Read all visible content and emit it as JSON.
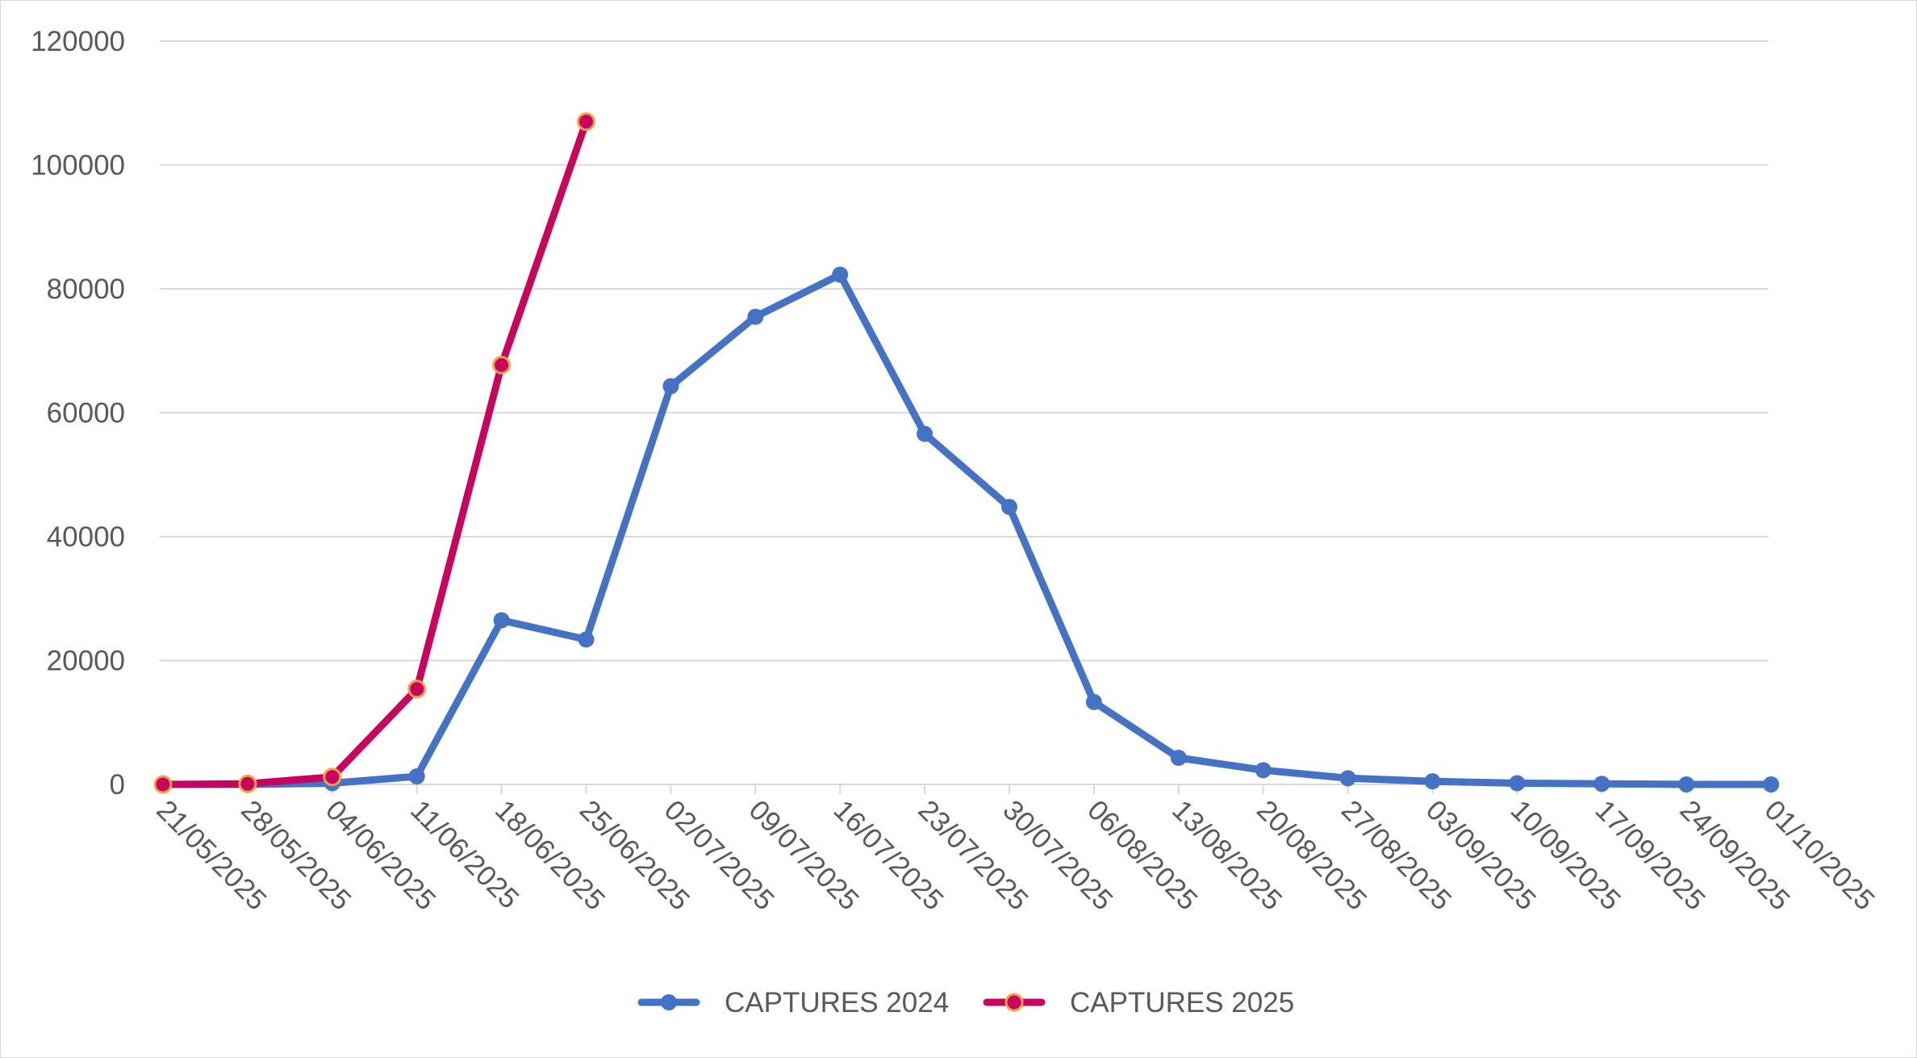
{
  "chart_data": {
    "type": "line",
    "title": "",
    "xlabel": "",
    "ylabel": "",
    "x": [
      "21/05/2025",
      "28/05/2025",
      "04/06/2025",
      "11/06/2025",
      "18/06/2025",
      "25/06/2025",
      "02/07/2025",
      "09/07/2025",
      "16/07/2025",
      "23/07/2025",
      "30/07/2025",
      "06/08/2025",
      "13/08/2025",
      "20/08/2025",
      "27/08/2025",
      "03/09/2025",
      "10/09/2025",
      "17/09/2025",
      "24/09/2025",
      "01/10/2025"
    ],
    "ylim": [
      0,
      120000
    ],
    "yticks": [
      "0",
      "20000",
      "40000",
      "60000",
      "80000",
      "100000",
      "120000"
    ],
    "grid": true,
    "legend_position": "bottom",
    "series": [
      {
        "name": "CAPTURES 2024",
        "color": "#4472c4",
        "marker_fill": "#4472c4",
        "marker_stroke": "#4472c4",
        "values": [
          0,
          0,
          200,
          1300,
          26500,
          23400,
          64300,
          75500,
          82300,
          56600,
          44800,
          13300,
          4300,
          2300,
          1000,
          500,
          200,
          100,
          0,
          0
        ]
      },
      {
        "name": "CAPTURES 2025",
        "color": "#c9045f",
        "marker_fill": "#c9045f",
        "marker_stroke": "#f2a34a",
        "values": [
          0,
          100,
          1200,
          15400,
          67700,
          107000,
          null,
          null,
          null,
          null,
          null,
          null,
          null,
          null,
          null,
          null,
          null,
          null,
          null,
          null
        ]
      }
    ]
  }
}
